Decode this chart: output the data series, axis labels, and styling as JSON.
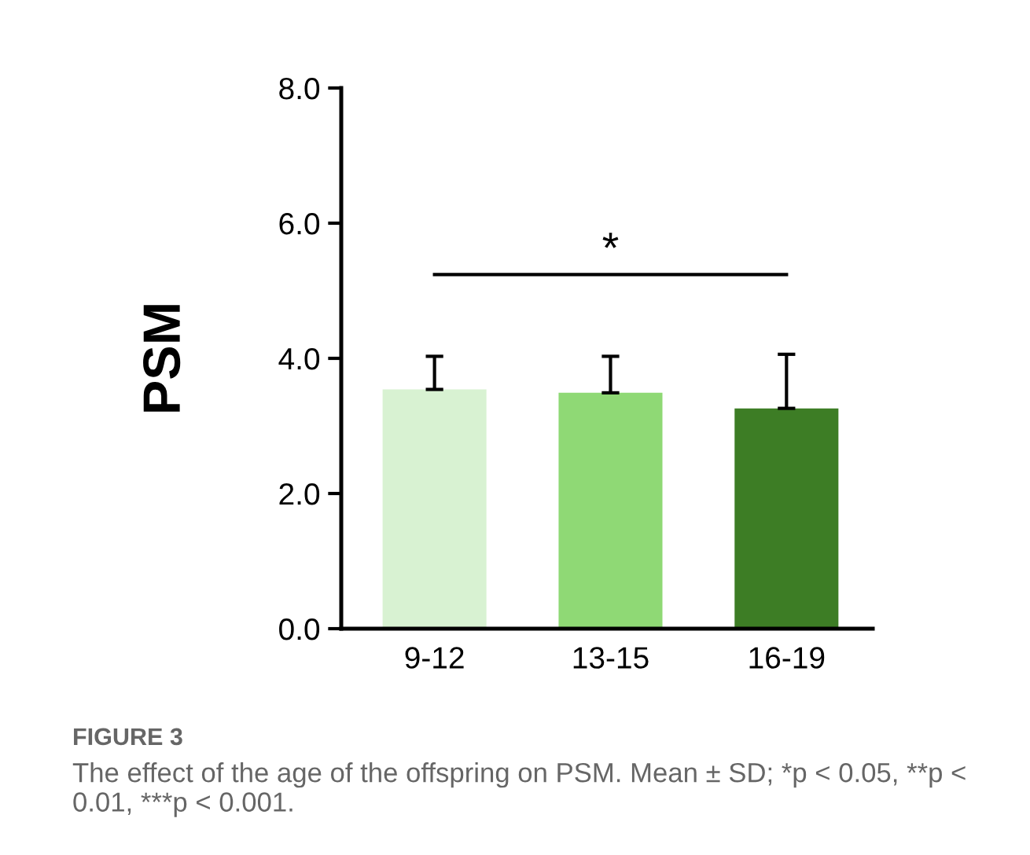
{
  "chart_data": {
    "type": "bar",
    "ylabel": "PSM",
    "categories": [
      "9-12",
      "13-15",
      "16-19"
    ],
    "values": [
      3.54,
      3.49,
      3.26
    ],
    "errors": [
      [
        3.54,
        4.03
      ],
      [
        3.49,
        4.03
      ],
      [
        3.26,
        4.06
      ]
    ],
    "colors": [
      "#d8f2d2",
      "#8fd975",
      "#3d7d25"
    ],
    "ylim": [
      0,
      8
    ],
    "yticks": [
      {
        "value": 0,
        "label": "0.0"
      },
      {
        "value": 2,
        "label": "2.0"
      },
      {
        "value": 4,
        "label": "4.0"
      },
      {
        "value": 6,
        "label": "6.0"
      },
      {
        "value": 8,
        "label": "8.0"
      }
    ],
    "grid": false,
    "annotations": [
      "*",
      "FIGURE 3",
      "The effect of the age of the offspring on PSM. Mean ± SD; *p < 0.05, **p < 0.01, ***p < 0.001."
    ]
  }
}
